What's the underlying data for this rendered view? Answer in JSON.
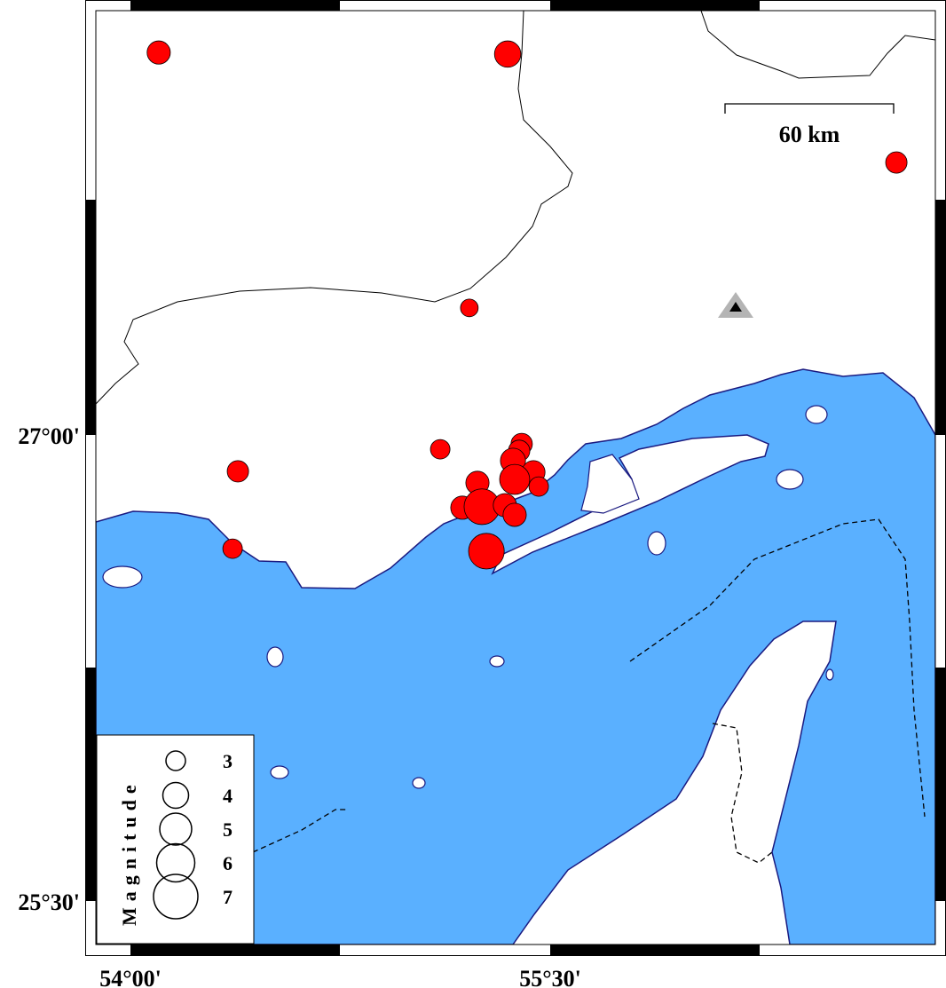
{
  "map": {
    "colors": {
      "sea": "#5AB0FF",
      "land": "#FFFFFF",
      "coast": "#1A1A80",
      "event": "#FF0000",
      "station_outer": "#B4B4B4",
      "station_inner": "#000000"
    },
    "extent": {
      "lon": [
        53.88,
        56.88
      ],
      "lat": [
        25.36,
        28.37
      ]
    },
    "axis_labels": {
      "x": [
        {
          "lon": 54.0,
          "label": "54°00'"
        },
        {
          "lon": 55.5,
          "label": "55°30'"
        }
      ],
      "y": [
        {
          "lat": 27.0,
          "label": "27°00'"
        },
        {
          "lat": 25.5,
          "label": "25°30'"
        }
      ]
    },
    "scale_bar": {
      "label": "60 km"
    },
    "station": {
      "lon": 56.163,
      "lat": 27.409,
      "icon": "triangle"
    },
    "events": [
      {
        "lon": 54.101,
        "lat": 28.231,
        "mag": 3.6
      },
      {
        "lon": 55.348,
        "lat": 28.226,
        "mag": 4.1
      },
      {
        "lon": 56.737,
        "lat": 27.877,
        "mag": 3.3
      },
      {
        "lon": 55.211,
        "lat": 27.409,
        "mag": 2.7
      },
      {
        "lon": 55.107,
        "lat": 26.954,
        "mag": 3.0
      },
      {
        "lon": 54.384,
        "lat": 26.883,
        "mag": 3.3
      },
      {
        "lon": 54.365,
        "lat": 26.634,
        "mag": 3.0
      },
      {
        "lon": 55.398,
        "lat": 26.971,
        "mag": 3.3
      },
      {
        "lon": 55.389,
        "lat": 26.949,
        "mag": 3.3
      },
      {
        "lon": 55.367,
        "lat": 26.917,
        "mag": 3.9
      },
      {
        "lon": 55.24,
        "lat": 26.846,
        "mag": 3.6
      },
      {
        "lon": 55.44,
        "lat": 26.88,
        "mag": 3.6
      },
      {
        "lon": 55.373,
        "lat": 26.857,
        "mag": 4.7
      },
      {
        "lon": 55.459,
        "lat": 26.834,
        "mag": 3.0
      },
      {
        "lon": 55.186,
        "lat": 26.766,
        "mag": 3.6
      },
      {
        "lon": 55.256,
        "lat": 26.769,
        "mag": 5.6
      },
      {
        "lon": 55.338,
        "lat": 26.774,
        "mag": 3.6
      },
      {
        "lon": 55.373,
        "lat": 26.743,
        "mag": 3.6
      },
      {
        "lon": 55.272,
        "lat": 26.626,
        "mag": 5.6
      }
    ]
  },
  "legend": {
    "title": "Magnitude",
    "items": [
      {
        "mag": 3,
        "label": "3"
      },
      {
        "mag": 4,
        "label": "4"
      },
      {
        "mag": 5,
        "label": "5"
      },
      {
        "mag": 6,
        "label": "6"
      },
      {
        "mag": 7,
        "label": "7"
      }
    ]
  }
}
